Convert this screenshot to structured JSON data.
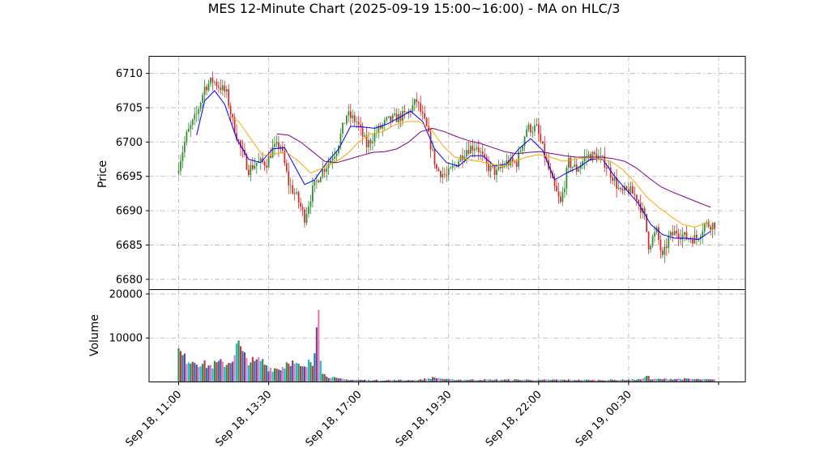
{
  "chart_data": {
    "type": "candlestick",
    "title": "MES 12-Minute Chart (2025-09-19 15:00~16:00) - MA on HLC/3",
    "price_panel": {
      "ylabel": "Price",
      "yticks": [
        6680,
        6685,
        6690,
        6695,
        6700,
        6705,
        6710
      ],
      "ylim": [
        6678.5,
        6712.5
      ],
      "grid": true,
      "up_color": "#2e8b2e",
      "down_color": "#d62728",
      "price_path": [
        [
          0,
          6695.5
        ],
        [
          5,
          6701
        ],
        [
          10,
          6704
        ],
        [
          14,
          6708
        ],
        [
          18,
          6709
        ],
        [
          22,
          6708
        ],
        [
          25,
          6707
        ],
        [
          28,
          6703
        ],
        [
          32,
          6699
        ],
        [
          36,
          6696
        ],
        [
          40,
          6697
        ],
        [
          45,
          6697
        ],
        [
          48,
          6699
        ],
        [
          52,
          6699.5
        ],
        [
          56,
          6694
        ],
        [
          60,
          6692
        ],
        [
          64,
          6689
        ],
        [
          68,
          6693
        ],
        [
          72,
          6695.5
        ],
        [
          76,
          6697
        ],
        [
          80,
          6699
        ],
        [
          85,
          6704
        ],
        [
          90,
          6703
        ],
        [
          95,
          6699.5
        ],
        [
          100,
          6701.5
        ],
        [
          105,
          6703
        ],
        [
          110,
          6703.5
        ],
        [
          115,
          6704
        ],
        [
          120,
          6706
        ],
        [
          125,
          6702
        ],
        [
          130,
          6696
        ],
        [
          135,
          6695
        ],
        [
          140,
          6697
        ],
        [
          145,
          6699
        ],
        [
          150,
          6699.5
        ],
        [
          155,
          6696.5
        ],
        [
          160,
          6695.5
        ],
        [
          165,
          6697
        ],
        [
          170,
          6697
        ],
        [
          175,
          6702
        ],
        [
          180,
          6702
        ],
        [
          184,
          6698
        ],
        [
          188,
          6694
        ],
        [
          192,
          6691
        ],
        [
          196,
          6697
        ],
        [
          200,
          6696
        ],
        [
          205,
          6698
        ],
        [
          210,
          6698
        ],
        [
          214,
          6697
        ],
        [
          218,
          6695
        ],
        [
          222,
          6692.5
        ],
        [
          226,
          6693
        ],
        [
          230,
          6692
        ],
        [
          234,
          6689
        ],
        [
          236,
          6685
        ],
        [
          240,
          6687
        ],
        [
          243,
          6683
        ],
        [
          246,
          6686
        ],
        [
          250,
          6687
        ],
        [
          255,
          6686
        ],
        [
          260,
          6686
        ],
        [
          264,
          6688
        ],
        [
          268,
          6688
        ]
      ],
      "ma_series": [
        {
          "color": "#0000ff",
          "points": [
            [
              9,
              6701
            ],
            [
              13,
              6706
            ],
            [
              18,
              6707.5
            ],
            [
              23,
              6705.5
            ],
            [
              29,
              6700.5
            ],
            [
              35,
              6697.5
            ],
            [
              41,
              6697
            ],
            [
              47,
              6699
            ],
            [
              53,
              6699.2
            ],
            [
              58,
              6696.5
            ],
            [
              63,
              6693.8
            ],
            [
              68,
              6694.5
            ],
            [
              74,
              6697
            ],
            [
              80,
              6699
            ],
            [
              86,
              6702.3
            ],
            [
              92,
              6702.2
            ],
            [
              98,
              6702
            ],
            [
              104,
              6702.6
            ],
            [
              110,
              6703.5
            ],
            [
              116,
              6704.5
            ],
            [
              122,
              6703
            ],
            [
              128,
              6699
            ],
            [
              134,
              6697
            ],
            [
              140,
              6696.5
            ],
            [
              146,
              6698
            ],
            [
              152,
              6698
            ],
            [
              158,
              6696.5
            ],
            [
              164,
              6696.8
            ],
            [
              170,
              6699
            ],
            [
              176,
              6700.5
            ],
            [
              182,
              6698.8
            ],
            [
              188,
              6694.5
            ],
            [
              194,
              6695.5
            ],
            [
              200,
              6696.3
            ],
            [
              206,
              6697.5
            ],
            [
              212,
              6697.5
            ],
            [
              218,
              6695
            ],
            [
              224,
              6693
            ],
            [
              230,
              6691
            ],
            [
              236,
              6688
            ],
            [
              242,
              6686.5
            ],
            [
              248,
              6686
            ],
            [
              254,
              6686
            ],
            [
              260,
              6685.8
            ],
            [
              266,
              6687
            ]
          ]
        },
        {
          "color": "#ffa500",
          "points": [
            [
              24,
              6704
            ],
            [
              30,
              6703
            ],
            [
              36,
              6700.5
            ],
            [
              42,
              6698
            ],
            [
              48,
              6698.3
            ],
            [
              54,
              6698.5
            ],
            [
              60,
              6697.2
            ],
            [
              66,
              6695.5
            ],
            [
              72,
              6696.2
            ],
            [
              78,
              6697
            ],
            [
              84,
              6698.2
            ],
            [
              90,
              6700
            ],
            [
              96,
              6701.2
            ],
            [
              102,
              6701.5
            ],
            [
              108,
              6702.5
            ],
            [
              114,
              6703
            ],
            [
              120,
              6703
            ],
            [
              126,
              6702
            ],
            [
              132,
              6699.5
            ],
            [
              138,
              6697.8
            ],
            [
              144,
              6697.5
            ],
            [
              150,
              6697.2
            ],
            [
              156,
              6696.8
            ],
            [
              162,
              6696.5
            ],
            [
              168,
              6697.2
            ],
            [
              174,
              6697.8
            ],
            [
              180,
              6698.2
            ],
            [
              186,
              6697.8
            ],
            [
              192,
              6697.2
            ],
            [
              198,
              6697.5
            ],
            [
              204,
              6697.8
            ],
            [
              210,
              6697.5
            ],
            [
              216,
              6697.2
            ],
            [
              222,
              6696
            ],
            [
              228,
              6694.2
            ],
            [
              234,
              6692
            ],
            [
              240,
              6690.5
            ],
            [
              246,
              6689.2
            ],
            [
              252,
              6688
            ],
            [
              258,
              6687.6
            ],
            [
              264,
              6688.2
            ],
            [
              266,
              6688.5
            ]
          ]
        },
        {
          "color": "#800080",
          "points": [
            [
              49,
              6701.2
            ],
            [
              55,
              6701
            ],
            [
              61,
              6700
            ],
            [
              67,
              6698.6
            ],
            [
              73,
              6697.2
            ],
            [
              79,
              6697
            ],
            [
              85,
              6697.5
            ],
            [
              91,
              6698
            ],
            [
              97,
              6698.5
            ],
            [
              103,
              6698.6
            ],
            [
              109,
              6699
            ],
            [
              115,
              6700
            ],
            [
              121,
              6701.5
            ],
            [
              127,
              6702
            ],
            [
              133,
              6701.5
            ],
            [
              139,
              6700.8
            ],
            [
              145,
              6700.2
            ],
            [
              151,
              6699.8
            ],
            [
              157,
              6699.2
            ],
            [
              163,
              6698.6
            ],
            [
              169,
              6698.3
            ],
            [
              175,
              6698.5
            ],
            [
              181,
              6698.6
            ],
            [
              187,
              6698.3
            ],
            [
              193,
              6698
            ],
            [
              199,
              6697.8
            ],
            [
              205,
              6697.8
            ],
            [
              211,
              6697.8
            ],
            [
              217,
              6697.6
            ],
            [
              223,
              6697.2
            ],
            [
              229,
              6696.2
            ],
            [
              235,
              6694.8
            ],
            [
              241,
              6693.5
            ],
            [
              247,
              6692.7
            ],
            [
              253,
              6692
            ],
            [
              259,
              6691.3
            ],
            [
              266,
              6690.5
            ]
          ]
        }
      ]
    },
    "volume_panel": {
      "ylabel": "Volume",
      "yticks": [
        10000,
        20000
      ],
      "ylim": [
        0,
        21000
      ],
      "grid": true,
      "bar_colors": [
        "#2e8b57",
        "#c0392b",
        "#1f77b4",
        "#7b3f7f",
        "#e377c2",
        "#17becf"
      ],
      "volume_path": [
        [
          0,
          7000
        ],
        [
          3,
          5300
        ],
        [
          8,
          4800
        ],
        [
          12,
          4100
        ],
        [
          16,
          3600
        ],
        [
          20,
          4300
        ],
        [
          24,
          4100
        ],
        [
          26,
          4800
        ],
        [
          28,
          6400
        ],
        [
          30,
          8800
        ],
        [
          32,
          6100
        ],
        [
          35,
          5000
        ],
        [
          38,
          4400
        ],
        [
          41,
          5000
        ],
        [
          43,
          4200
        ],
        [
          45,
          3200
        ],
        [
          50,
          3000
        ],
        [
          53,
          3600
        ],
        [
          55,
          5200
        ],
        [
          57,
          4300
        ],
        [
          60,
          3500
        ],
        [
          63,
          3000
        ],
        [
          66,
          4800
        ],
        [
          67,
          3900
        ],
        [
          68,
          8500
        ],
        [
          69,
          15700
        ],
        [
          70,
          20500
        ],
        [
          71,
          6300
        ],
        [
          72,
          1800
        ],
        [
          75,
          1200
        ],
        [
          80,
          700
        ],
        [
          85,
          500
        ],
        [
          100,
          400
        ],
        [
          120,
          450
        ],
        [
          128,
          1000
        ],
        [
          135,
          500
        ],
        [
          175,
          500
        ],
        [
          180,
          400
        ],
        [
          185,
          500
        ],
        [
          210,
          450
        ],
        [
          225,
          500
        ],
        [
          232,
          600
        ],
        [
          234,
          1800
        ],
        [
          236,
          600
        ],
        [
          250,
          700
        ],
        [
          260,
          600
        ],
        [
          268,
          500
        ]
      ]
    },
    "xaxis": {
      "tick_labels": [
        "Sep 18, 11:00",
        "Sep 18, 13:30",
        "Sep 18, 17:00",
        "Sep 18, 19:30",
        "Sep 18, 22:00",
        "Sep 19, 00:30"
      ],
      "tick_bar_index": [
        0,
        45,
        90,
        135,
        180,
        225
      ],
      "bar_count": 269,
      "last_tick_bar_index": 270
    }
  }
}
